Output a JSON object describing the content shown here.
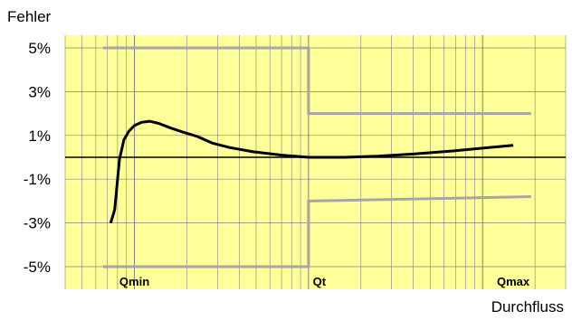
{
  "chart_data": {
    "type": "line",
    "ylabel": "Fehler",
    "xlabel": "Durchfluss",
    "x_scale": "log",
    "y_ticks": [
      "5%",
      "3%",
      "1%",
      "-1%",
      "-3%",
      "-5%"
    ],
    "y_tick_values": [
      5,
      3,
      1,
      -1,
      -3,
      -5
    ],
    "ylim": [
      -5,
      5
    ],
    "x_markers": [
      {
        "name": "Qmin",
        "value": 1
      },
      {
        "name": "Qt",
        "value": 10
      },
      {
        "name": "Qmax",
        "value": 150
      }
    ],
    "grid": true,
    "colors": {
      "plot_background": "#FFFF99",
      "gridline": "#808080",
      "limit_line": "#A6A6A6",
      "curve": "#000000",
      "zero_line": "#000000"
    },
    "limits": {
      "upper": [
        {
          "x": 0.66,
          "y": 5
        },
        {
          "x": 10,
          "y": 5
        },
        {
          "x": 10,
          "y": 2
        },
        {
          "x": 190,
          "y": 2
        }
      ],
      "lower": [
        {
          "x": 0.66,
          "y": -5
        },
        {
          "x": 10,
          "y": -5
        },
        {
          "x": 10,
          "y": -2
        },
        {
          "x": 190,
          "y": -1.8
        }
      ]
    },
    "series": [
      {
        "points": [
          {
            "x": 0.73,
            "y": -3.0
          },
          {
            "x": 0.77,
            "y": -2.4
          },
          {
            "x": 0.82,
            "y": -0.1
          },
          {
            "x": 0.87,
            "y": 0.8
          },
          {
            "x": 0.93,
            "y": 1.2
          },
          {
            "x": 1.0,
            "y": 1.45
          },
          {
            "x": 1.1,
            "y": 1.6
          },
          {
            "x": 1.22,
            "y": 1.65
          },
          {
            "x": 1.38,
            "y": 1.55
          },
          {
            "x": 1.6,
            "y": 1.35
          },
          {
            "x": 1.9,
            "y": 1.15
          },
          {
            "x": 2.3,
            "y": 0.95
          },
          {
            "x": 2.8,
            "y": 0.65
          },
          {
            "x": 3.5,
            "y": 0.45
          },
          {
            "x": 4.8,
            "y": 0.25
          },
          {
            "x": 7.0,
            "y": 0.1
          },
          {
            "x": 10.0,
            "y": 0.0
          },
          {
            "x": 16.0,
            "y": 0.0
          },
          {
            "x": 25.0,
            "y": 0.05
          },
          {
            "x": 40.0,
            "y": 0.15
          },
          {
            "x": 70.0,
            "y": 0.3
          },
          {
            "x": 110.0,
            "y": 0.45
          },
          {
            "x": 150.0,
            "y": 0.55
          }
        ]
      }
    ]
  }
}
